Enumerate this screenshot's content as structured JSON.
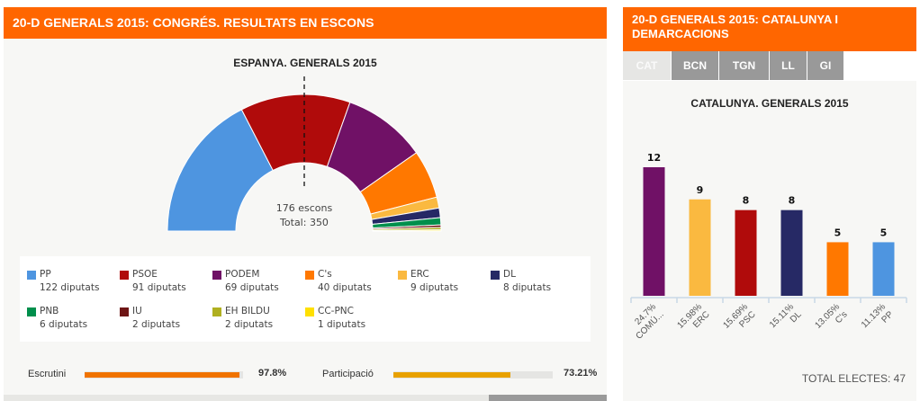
{
  "left_panel": {
    "header": "20-D GENERALS 2015: CONGRÉS. RESULTATS EN ESCONS",
    "chart_title": "ESPANYA. GENERALS 2015",
    "majority_label": "176 escons",
    "total_label": "Total: 350",
    "stats": {
      "scrutiny": {
        "label": "Escrutini",
        "value": "97.8%",
        "fraction": 0.978,
        "color": "#f07300"
      },
      "turnout": {
        "label": "Participació",
        "value": "73.21%",
        "fraction": 0.7321,
        "color": "#e8a100"
      }
    }
  },
  "right_panel": {
    "header_line1": "20-D GENERALS 2015: CATALUNYA I",
    "header_line2": "DEMARCACIONS",
    "tabs": [
      {
        "label": "CAT",
        "active": true
      },
      {
        "label": "BCN",
        "active": false
      },
      {
        "label": "TGN",
        "active": false
      },
      {
        "label": "LL",
        "active": false
      },
      {
        "label": "GI",
        "active": false
      }
    ],
    "chart_title": "CATALUNYA. GENERALS 2015",
    "total": "TOTAL ELECTES: 47"
  },
  "chart_data": [
    {
      "type": "pie",
      "variant": "semicircle-donut",
      "title": "ESPANYA. GENERALS 2015",
      "total": 350,
      "majority": 176,
      "unit": "diputats",
      "series": [
        {
          "name": "PP",
          "value": 122,
          "color": "#4e95e0"
        },
        {
          "name": "PSOE",
          "value": 91,
          "color": "#b00b0b"
        },
        {
          "name": "PODEM",
          "value": 69,
          "color": "#701166"
        },
        {
          "name": "C's",
          "value": 40,
          "color": "#ff7800"
        },
        {
          "name": "ERC",
          "value": 9,
          "color": "#fab940"
        },
        {
          "name": "DL",
          "value": 8,
          "color": "#262965"
        },
        {
          "name": "PNB",
          "value": 6,
          "color": "#008f4c"
        },
        {
          "name": "IU",
          "value": 2,
          "color": "#6e1515"
        },
        {
          "name": "EH BILDU",
          "value": 2,
          "color": "#b0b020"
        },
        {
          "name": "CC-PNC",
          "value": 1,
          "color": "#ffe000"
        }
      ]
    },
    {
      "type": "bar",
      "title": "CATALUNYA. GENERALS 2015",
      "categories": [
        "COMÚ...",
        "ERC",
        "PSC",
        "DL",
        "C's",
        "PP"
      ],
      "percent_labels": [
        "24.7%",
        "15.98%",
        "15.69%",
        "15.11%",
        "13.05%",
        "11.13%"
      ],
      "values": [
        12,
        9,
        8,
        8,
        5,
        5
      ],
      "colors": [
        "#701166",
        "#fab940",
        "#b00b0b",
        "#262965",
        "#ff7800",
        "#4e95e0"
      ],
      "ylim": [
        0,
        12
      ]
    }
  ]
}
